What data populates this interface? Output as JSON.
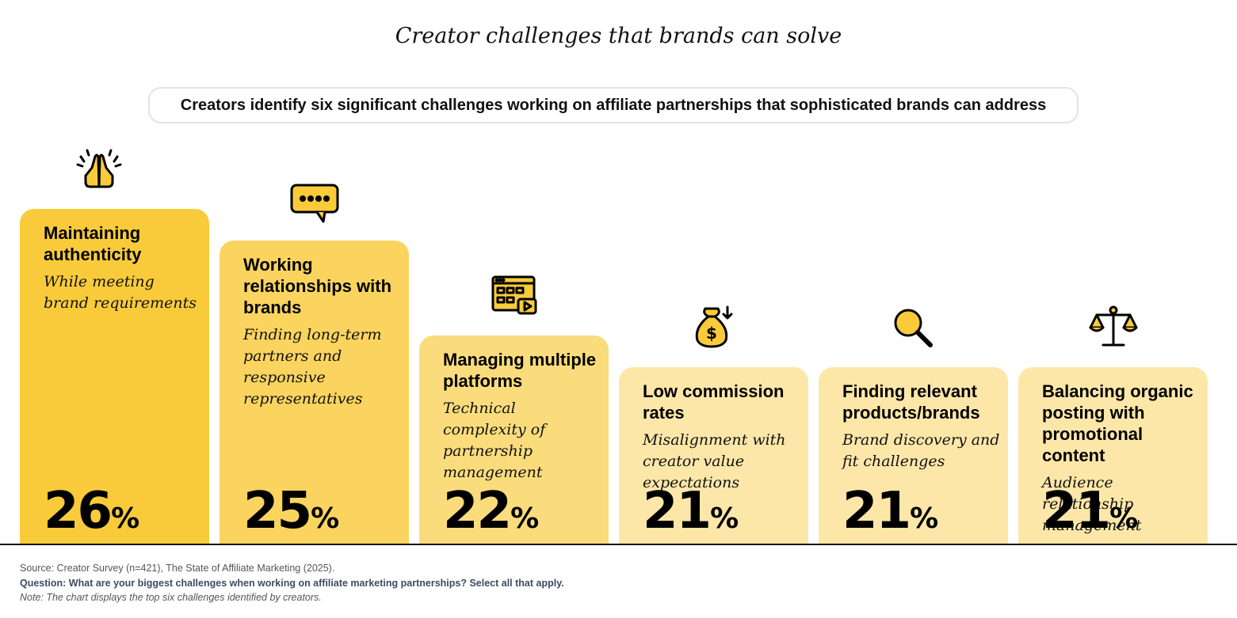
{
  "title": "Creator challenges that brands can solve",
  "subtitle": "Creators identify six significant challenges working on affiliate partnerships that sophisticated brands can address",
  "chart_data": {
    "type": "bar",
    "title": "Creator challenges that brands can solve",
    "unit": "%",
    "ylim": [
      0,
      26
    ],
    "categories": [
      "Maintaining authenticity",
      "Working relationships with brands",
      "Managing multiple platforms",
      "Low commission rates",
      "Finding relevant products/brands",
      "Balancing organic posting with promotional content"
    ],
    "descriptions": [
      "While meeting brand requirements",
      "Finding long-term partners and responsive representatives",
      "Technical complexity of partnership management",
      "Misalignment with creator value expectations",
      "Brand discovery and fit challenges",
      "Audience relationship management"
    ],
    "values": [
      26,
      25,
      22,
      21,
      21,
      21
    ],
    "icons": [
      "praying-hands-icon",
      "speech-bubble-icon",
      "browser-video-icon",
      "money-bag-icon",
      "magnifier-icon",
      "scales-icon"
    ],
    "colors": [
      "#f9cb3a",
      "#fad45e",
      "#fbdc7c",
      "#fce7a9",
      "#fce7a9",
      "#fce7a9"
    ]
  },
  "footer": {
    "source": "Source: Creator Survey (n=421), The State of Affiliate Marketing (2025).",
    "question": "Question: What are your biggest challenges when working on affiliate marketing partnerships? Select all that apply.",
    "note": "Note: The chart displays the top six challenges identified by creators."
  }
}
